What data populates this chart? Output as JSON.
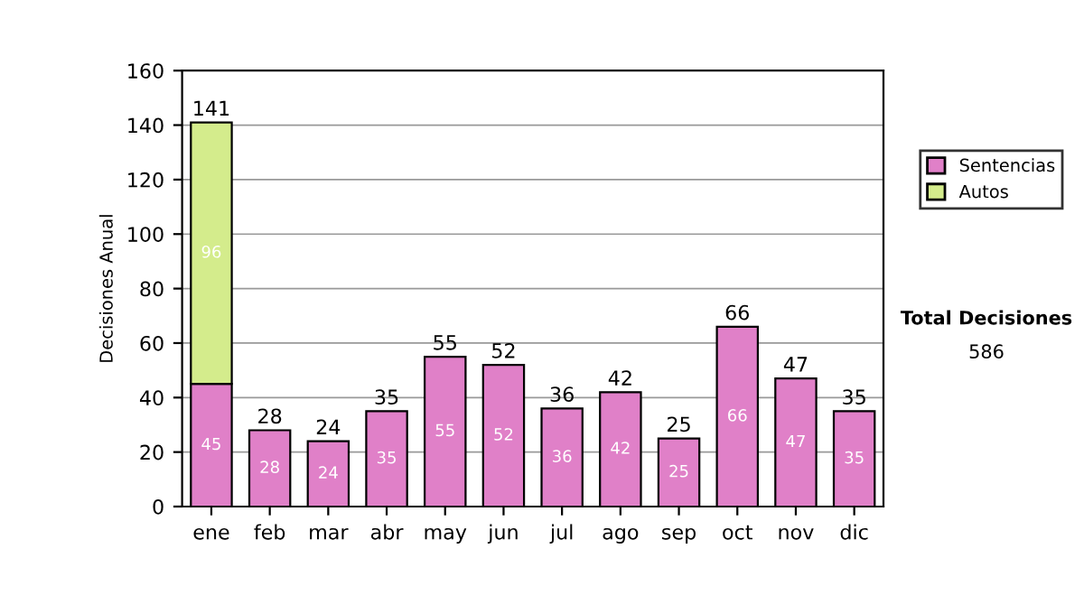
{
  "chart_data": {
    "type": "bar",
    "stacked": true,
    "ylabel": "Decisiones Anual",
    "categories": [
      "ene",
      "feb",
      "mar",
      "abr",
      "may",
      "jun",
      "jul",
      "ago",
      "sep",
      "oct",
      "nov",
      "dic"
    ],
    "series": [
      {
        "name": "Sentencias",
        "color": "#e080c8",
        "values": [
          45,
          28,
          24,
          35,
          55,
          52,
          36,
          42,
          25,
          66,
          47,
          35
        ],
        "value_labels": [
          "45",
          "28",
          "24",
          "35",
          "55",
          "52",
          "36",
          "42",
          "25",
          "66",
          "47",
          "35"
        ]
      },
      {
        "name": "Autos",
        "color": "#d4ec8c",
        "values": [
          96,
          null,
          null,
          null,
          null,
          null,
          null,
          null,
          null,
          null,
          null,
          null
        ],
        "value_labels": [
          "96",
          null,
          null,
          null,
          null,
          null,
          null,
          null,
          null,
          null,
          null,
          null
        ]
      }
    ],
    "totals": [
      "141",
      "28",
      "24",
      "35",
      "55",
      "52",
      "36",
      "42",
      "25",
      "66",
      "47",
      "35"
    ],
    "ylim": [
      0,
      160
    ],
    "yticks": [
      0,
      20,
      40,
      60,
      80,
      100,
      120,
      140,
      160
    ],
    "grid": "y",
    "legend": "right",
    "annotations": [
      "Total Decisiones",
      "586"
    ]
  }
}
